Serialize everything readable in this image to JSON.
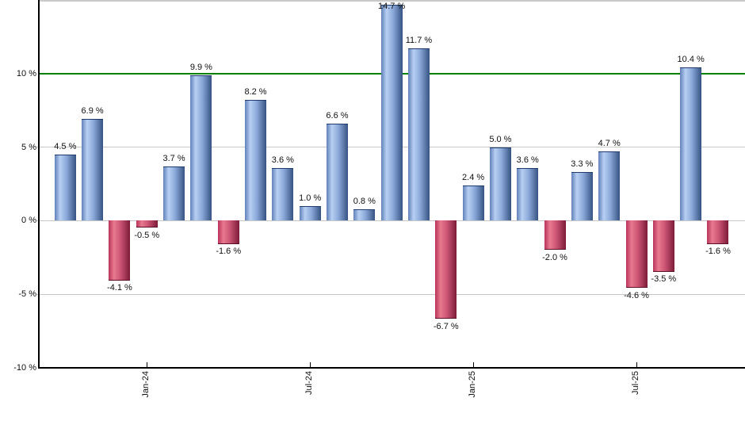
{
  "chart_data": {
    "type": "bar",
    "title": "",
    "xlabel": "",
    "ylabel": "",
    "unit": "%",
    "ylim": [
      -10,
      15
    ],
    "grid": true,
    "legend": "none",
    "yticks": [
      {
        "value": 10,
        "label": "10 %"
      },
      {
        "value": 5,
        "label": "5 %"
      },
      {
        "value": 0,
        "label": "0 %"
      },
      {
        "value": -5,
        "label": "-5 %"
      },
      {
        "value": -10,
        "label": "-10 %"
      }
    ],
    "gridlines": [
      5,
      0,
      -5
    ],
    "reference_line": {
      "value": 10
    },
    "xticks": [
      {
        "bar_index": 3,
        "label": "Jan-24"
      },
      {
        "bar_index": 9,
        "label": "Jul-24"
      },
      {
        "bar_index": 15,
        "label": "Jan-25"
      },
      {
        "bar_index": 21,
        "label": "Jul-25"
      }
    ],
    "bars": [
      {
        "value": 4.5,
        "label": "4.5 %"
      },
      {
        "value": 6.9,
        "label": "6.9 %"
      },
      {
        "value": -4.1,
        "label": "-4.1 %"
      },
      {
        "value": -0.5,
        "label": "-0.5 %"
      },
      {
        "value": 3.7,
        "label": "3.7 %"
      },
      {
        "value": 9.9,
        "label": "9.9 %"
      },
      {
        "value": -1.6,
        "label": "-1.6 %"
      },
      {
        "value": 8.2,
        "label": "8.2 %"
      },
      {
        "value": 3.6,
        "label": "3.6 %"
      },
      {
        "value": 1.0,
        "label": "1.0 %"
      },
      {
        "value": 6.6,
        "label": "6.6 %"
      },
      {
        "value": 0.8,
        "label": "0.8 %"
      },
      {
        "value": 14.7,
        "label": "14.7 %"
      },
      {
        "value": 11.7,
        "label": "11.7 %"
      },
      {
        "value": -6.7,
        "label": "-6.7 %"
      },
      {
        "value": 2.4,
        "label": "2.4 %"
      },
      {
        "value": 5.0,
        "label": "5.0 %"
      },
      {
        "value": 3.6,
        "label": "3.6 %"
      },
      {
        "value": -2.0,
        "label": "-2.0 %"
      },
      {
        "value": 3.3,
        "label": "3.3 %"
      },
      {
        "value": 4.7,
        "label": "4.7 %"
      },
      {
        "value": -4.6,
        "label": "-4.6 %"
      },
      {
        "value": -3.5,
        "label": "-3.5 %"
      },
      {
        "value": 10.4,
        "label": "10.4 %"
      },
      {
        "value": -1.6,
        "label": "-1.6 %"
      }
    ]
  },
  "colors": {
    "positive_gradient": [
      "#6080b8",
      "#b7cff2",
      "#8ba9da",
      "#365382"
    ],
    "positive_cap": "#1f3c6c",
    "negative_gradient": [
      "#b8335a",
      "#e8798f",
      "#cc5574",
      "#7c1b38"
    ],
    "negative_cap": "#5c1028",
    "reference_line": "#008000",
    "gridline": "#c6c6c6",
    "axis": "#000000",
    "frame_top": "#c9c9c9",
    "label_text": "#111111",
    "background": "#ffffff"
  }
}
